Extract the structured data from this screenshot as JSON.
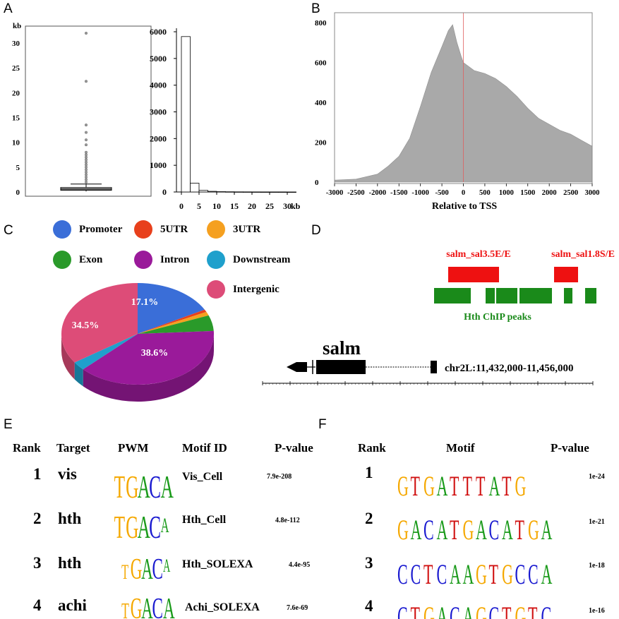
{
  "panels": {
    "A": "A",
    "B": "B",
    "C": "C",
    "D": "D",
    "E": "E",
    "F": "F"
  },
  "panelA": {
    "box_unit": "kb",
    "box_yticks": [
      "0",
      "5",
      "10",
      "15",
      "20",
      "25",
      "30"
    ],
    "hist_yticks": [
      "0",
      "1000",
      "2000",
      "3000",
      "4000",
      "5000",
      "6000"
    ],
    "hist_xticks": [
      "0",
      "5",
      "10",
      "15",
      "20",
      "25",
      "30"
    ],
    "hist_xunit": "kb"
  },
  "chart_data": [
    {
      "type": "box",
      "panel": "A (left)",
      "ylabel": "kb",
      "ylim": [
        0,
        33
      ],
      "median": 0.6,
      "q1": 0.35,
      "q3": 0.9,
      "whisker_low": 0.1,
      "whisker_high": 1.6,
      "outliers": [
        2.0,
        2.5,
        3.0,
        3.5,
        4.0,
        4.5,
        5.0,
        5.5,
        6.0,
        6.5,
        7.0,
        7.5,
        8.0,
        9.5,
        10.5,
        12.0,
        13.5,
        22.3,
        32.0
      ]
    },
    {
      "type": "bar",
      "panel": "A (right)",
      "categories": [
        "0-2.5",
        "2.5-5",
        "5-7.5",
        "7.5-10",
        "10-12.5",
        "12.5-15",
        "15-17.5",
        "17.5-20",
        "20-22.5",
        "22.5-25",
        "25-27.5",
        "27.5-30",
        "30-32.5"
      ],
      "values": [
        5820,
        330,
        60,
        25,
        12,
        8,
        5,
        4,
        3,
        2,
        2,
        2,
        1
      ],
      "xlabel": "kb",
      "ylim": [
        0,
        6000
      ]
    },
    {
      "type": "area",
      "panel": "B",
      "xlabel": "Relative to TSS",
      "x": [
        -3000,
        -2500,
        -2000,
        -1750,
        -1500,
        -1250,
        -1000,
        -750,
        -500,
        -350,
        -250,
        -150,
        -50,
        0,
        250,
        500,
        750,
        1000,
        1250,
        1500,
        1750,
        2000,
        2250,
        2500,
        2750,
        3000
      ],
      "values": [
        10,
        15,
        40,
        80,
        130,
        220,
        380,
        550,
        680,
        760,
        790,
        700,
        630,
        600,
        560,
        545,
        520,
        480,
        430,
        370,
        320,
        290,
        260,
        240,
        210,
        180
      ],
      "xticks": [
        "-3000",
        "-2500",
        "-2000",
        "-1500",
        "-1000",
        "-500",
        "0",
        "500",
        "1000",
        "1500",
        "2000",
        "2500",
        "3000"
      ],
      "yticks": [
        "0",
        "200",
        "400",
        "600",
        "800"
      ],
      "ylim": [
        0,
        850
      ],
      "xlim": [
        -3000,
        3000
      ],
      "fill_color": "#a9a9a9"
    },
    {
      "type": "pie",
      "panel": "C",
      "slices": [
        {
          "name": "Promoter",
          "value": 17.1,
          "color": "#3a6ed8"
        },
        {
          "name": "5UTR",
          "value": 0.8,
          "color": "#e8401c"
        },
        {
          "name": "3UTR",
          "value": 1.2,
          "color": "#f5a020"
        },
        {
          "name": "Exon",
          "value": 5.0,
          "color": "#2a9a2a"
        },
        {
          "name": "Intron",
          "value": 38.6,
          "color": "#9a1a9a"
        },
        {
          "name": "Downstream",
          "value": 2.8,
          "color": "#1fa0cc"
        },
        {
          "name": "Intergenic",
          "value": 34.5,
          "color": "#dd4c78"
        }
      ],
      "labels": {
        "promoter": "17.1%",
        "intron": "38.6%",
        "intergenic": "34.5%"
      }
    }
  ],
  "legend": [
    {
      "label": "Promoter",
      "color": "#3a6ed8"
    },
    {
      "label": "5UTR",
      "color": "#e8401c"
    },
    {
      "label": "3UTR",
      "color": "#f5a020"
    },
    {
      "label": "Exon",
      "color": "#2a9a2a"
    },
    {
      "label": "Intron",
      "color": "#9a1a9a"
    },
    {
      "label": "Downstream",
      "color": "#1fa0cc"
    },
    {
      "label": "Intergenic",
      "color": "#dd4c78"
    }
  ],
  "panelD": {
    "enh1": "salm_sal3.5E/E",
    "enh2": "salm_sal1.8S/E",
    "peaks_label": "Hth ChIP peaks",
    "gene": "salm",
    "coords": "chr2L:11,432,000-11,456,000",
    "red": "#ee1111",
    "green": "#1a8a1a"
  },
  "tableE": {
    "headers": {
      "rank": "Rank",
      "target": "Target",
      "pwm": "PWM",
      "motif": "Motif ID",
      "pvalue": "P-value"
    },
    "rows": [
      {
        "rank": "1",
        "target": "vis",
        "pwm": "TGACA",
        "motif": "Vis_Cell",
        "pvalue": "7.9e-208"
      },
      {
        "rank": "2",
        "target": "hth",
        "pwm": "TGACA",
        "motif": "Hth_Cell",
        "pvalue": "4.8e-112"
      },
      {
        "rank": "3",
        "target": "hth",
        "pwm": "TGACA",
        "motif": "Hth_SOLEXA",
        "pvalue": "4.4e-95"
      },
      {
        "rank": "4",
        "target": "achi",
        "pwm": "TGACA",
        "motif": "Achi_SOLEXA",
        "pvalue": "7.6e-69"
      }
    ]
  },
  "tableF": {
    "headers": {
      "rank": "Rank",
      "motif": "Motif",
      "pvalue": "P-value"
    },
    "rows": [
      {
        "rank": "1",
        "motif": "GTGATTTATG",
        "pvalue": "1e-24"
      },
      {
        "rank": "2",
        "motif": "GACATGACATGA",
        "pvalue": "1e-21"
      },
      {
        "rank": "3",
        "motif": "CCTCAAGTGCCA",
        "pvalue": "1e-18"
      },
      {
        "rank": "4",
        "motif": "CTGACAGCTGTC",
        "pvalue": "1e-16"
      }
    ]
  }
}
